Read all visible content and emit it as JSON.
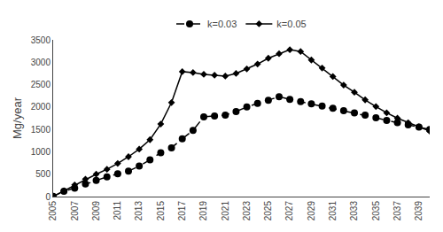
{
  "chart_data": {
    "type": "line",
    "y_label": "Mg/year",
    "x": [
      2005,
      2006,
      2007,
      2008,
      2009,
      2010,
      2011,
      2012,
      2013,
      2014,
      2015,
      2016,
      2017,
      2018,
      2019,
      2020,
      2021,
      2022,
      2023,
      2024,
      2025,
      2026,
      2027,
      2028,
      2029,
      2030,
      2031,
      2032,
      2033,
      2034,
      2035,
      2036,
      2037,
      2038,
      2039,
      2040
    ],
    "series": [
      {
        "name": "k=0.03",
        "color": "black",
        "marker": "circle",
        "line_style": "dashed",
        "values": [
          5,
          120,
          190,
          280,
          360,
          440,
          510,
          570,
          680,
          820,
          980,
          1090,
          1290,
          1480,
          1780,
          1800,
          1820,
          1900,
          2000,
          2080,
          2150,
          2230,
          2170,
          2120,
          2070,
          2020,
          1970,
          1920,
          1870,
          1820,
          1760,
          1700,
          1650,
          1600,
          1550,
          1500
        ]
      },
      {
        "name": "k=0.05",
        "color": "black",
        "marker": "diamond",
        "line_style": "solid",
        "values": [
          5,
          130,
          260,
          390,
          500,
          610,
          740,
          890,
          1060,
          1270,
          1620,
          2100,
          2790,
          2770,
          2730,
          2710,
          2690,
          2750,
          2850,
          2960,
          3090,
          3190,
          3280,
          3240,
          3050,
          2870,
          2680,
          2490,
          2330,
          2160,
          2010,
          1870,
          1750,
          1650,
          1560,
          1460
        ]
      }
    ],
    "xlim": [
      2005,
      2040
    ],
    "xticks": [
      2005,
      2007,
      2009,
      2011,
      2013,
      2015,
      2017,
      2019,
      2021,
      2023,
      2025,
      2027,
      2029,
      2031,
      2033,
      2035,
      2037,
      2039
    ],
    "ylim": [
      0,
      3500
    ],
    "yticks": [
      0,
      500,
      1000,
      1500,
      2000,
      2500,
      3000,
      3500
    ],
    "grid": false,
    "legend": "upper center"
  }
}
